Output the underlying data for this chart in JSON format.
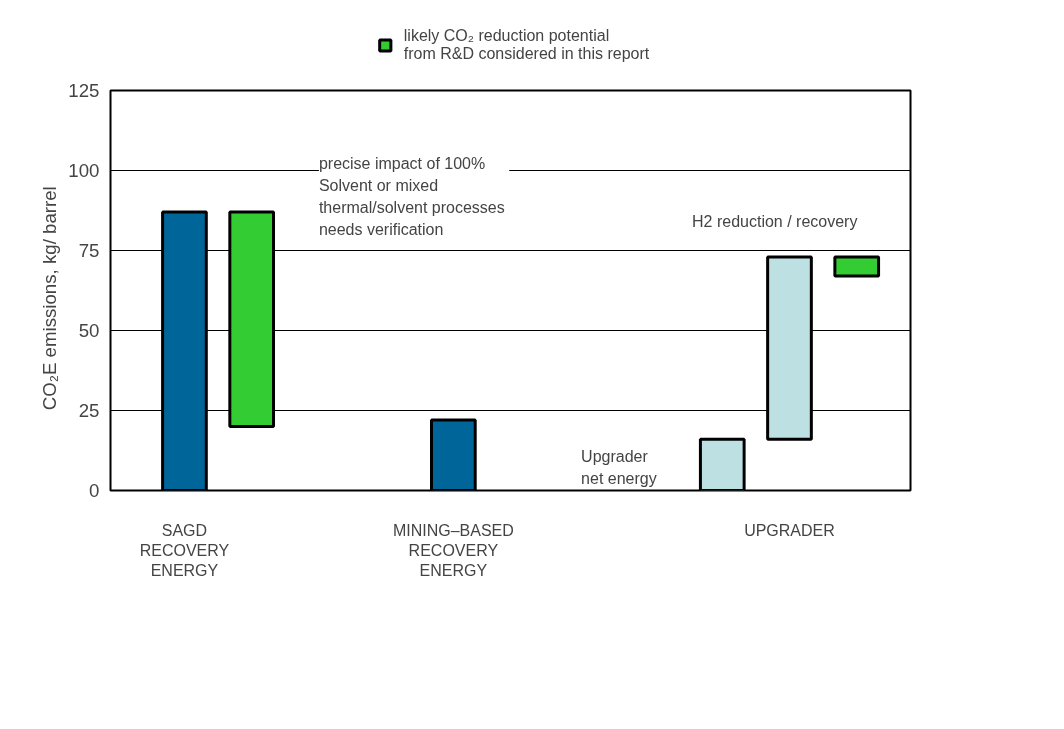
{
  "chart_data": {
    "type": "bar",
    "ylabel": "CO₂E emissions,    kg/ barrel",
    "categories": [
      "SAGD\nRECOVERY\nENERGY",
      null,
      null,
      null,
      "MINING–BASED\nRECOVERY\nENERGY",
      null,
      null,
      null,
      null,
      "UPGRADER",
      null
    ],
    "series": [
      {
        "color": "#006699",
        "values": [
          87,
          null,
          null,
          null,
          22,
          null,
          null,
          null,
          null,
          null,
          null
        ],
        "base": [
          0,
          null,
          null,
          null,
          0,
          null,
          null,
          null,
          null,
          null,
          null
        ]
      },
      {
        "color": "#bde0e3",
        "values": [
          null,
          null,
          null,
          null,
          null,
          null,
          null,
          null,
          16,
          57,
          null
        ],
        "base": [
          null,
          null,
          null,
          null,
          null,
          null,
          null,
          null,
          0,
          16,
          null
        ]
      },
      {
        "name": "likely CO₂ reduction potential\nfrom R&D considered in this report",
        "color": "#33cc33",
        "values": [
          null,
          67,
          null,
          null,
          null,
          null,
          null,
          null,
          null,
          null,
          6
        ],
        "base": [
          null,
          20,
          null,
          null,
          null,
          null,
          null,
          null,
          null,
          null,
          67
        ]
      }
    ],
    "ylim": [
      0,
      125
    ],
    "yticks": [
      0,
      25,
      50,
      75,
      100,
      125
    ],
    "grid": "y",
    "legend": "top",
    "annotations": [
      "precise impact of 100%\nSolvent or mixed\nthermal/solvent  processes\nneeds verification",
      {
        "text": "H2 reduction / recovery",
        "x": "UPGRADER",
        "y": 73
      },
      "Upgrader\nnet energy"
    ]
  }
}
